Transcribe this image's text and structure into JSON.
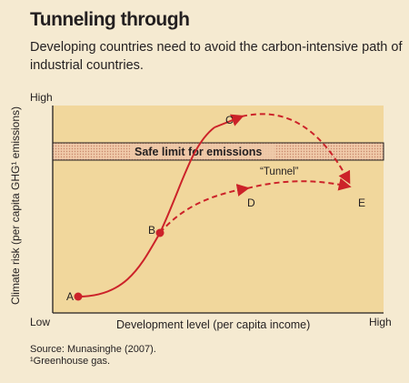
{
  "title": "Tunneling through",
  "subtitle": "Developing countries need to avoid the carbon-intensive path of industrial countries.",
  "axes": {
    "y_high": "High",
    "y_low": "Low",
    "x_high": "High",
    "x_label": "Development level (per capita income)",
    "y_label": "Climate risk (per capita GHG¹ emissions)"
  },
  "band_label": "Safe limit for emissions",
  "tunnel_label": "“Tunnel”",
  "points": {
    "a": "A",
    "b": "B",
    "c": "C",
    "d": "D",
    "e": "E"
  },
  "source": "Source: Munasinghe (2007).",
  "footnote": "¹Greenhouse gas.",
  "colors": {
    "background": "#f5ead1",
    "plot_area": "#f1d79c",
    "curve": "#cc2229",
    "band": "#e7b89a",
    "text": "#231f20"
  }
}
